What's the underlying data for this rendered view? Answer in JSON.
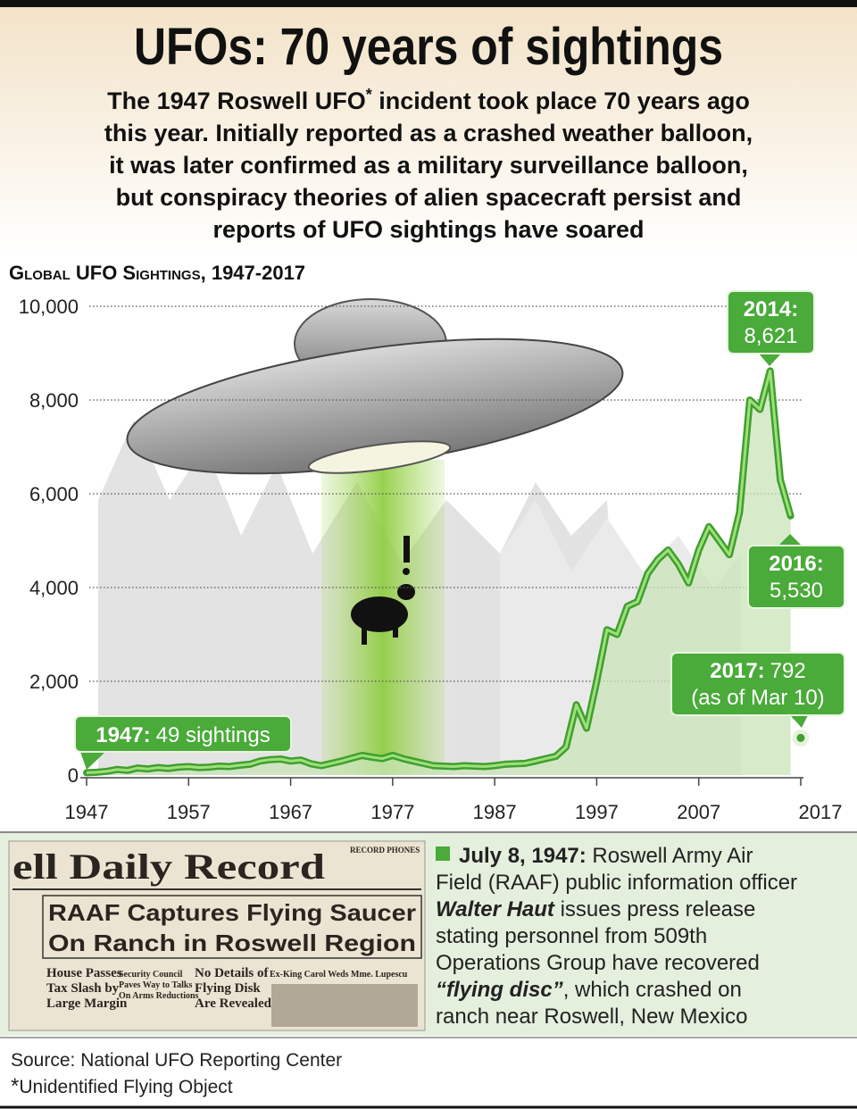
{
  "title": "UFOs: 70 years of sightings",
  "subtitle_lines": [
    [
      "The 1947 Roswell UFO",
      "*",
      " incident took place 70 years ago"
    ],
    "this year. Initially reported as a crashed weather balloon,",
    "it was later confirmed as a military surveillance balloon,",
    "but conspiracy theories of alien spacecraft persist and",
    "reports of UFO sightings have soared"
  ],
  "chart_data": {
    "type": "line",
    "title": "Global UFO Sightings, 1947-2017",
    "color": "#3f9f2f",
    "x": [
      1947,
      1948,
      1949,
      1950,
      1951,
      1952,
      1953,
      1954,
      1955,
      1956,
      1957,
      1958,
      1959,
      1960,
      1961,
      1962,
      1963,
      1964,
      1965,
      1966,
      1967,
      1968,
      1969,
      1970,
      1971,
      1972,
      1973,
      1974,
      1975,
      1976,
      1977,
      1978,
      1979,
      1980,
      1981,
      1982,
      1983,
      1984,
      1985,
      1986,
      1987,
      1988,
      1989,
      1990,
      1991,
      1992,
      1993,
      1994,
      1995,
      1996,
      1997,
      1998,
      1999,
      2000,
      2001,
      2002,
      2003,
      2004,
      2005,
      2006,
      2007,
      2008,
      2009,
      2010,
      2011,
      2012,
      2013,
      2014,
      2015,
      2016
    ],
    "values": [
      49,
      60,
      80,
      120,
      100,
      150,
      130,
      160,
      140,
      170,
      180,
      160,
      170,
      190,
      180,
      210,
      230,
      300,
      330,
      340,
      300,
      320,
      240,
      200,
      250,
      300,
      360,
      420,
      380,
      350,
      420,
      350,
      300,
      250,
      200,
      190,
      180,
      200,
      190,
      180,
      200,
      230,
      240,
      250,
      300,
      350,
      400,
      600,
      1500,
      1000,
      2000,
      3100,
      3000,
      3600,
      3700,
      4300,
      4600,
      4800,
      4500,
      4100,
      4800,
      5300,
      5000,
      4700,
      5600,
      8000,
      7800,
      8621,
      6300,
      5530
    ],
    "extra_points": [
      {
        "x": 2017,
        "value": 792
      }
    ],
    "xlim": [
      1947,
      2017
    ],
    "xticks": [
      1947,
      1957,
      1967,
      1977,
      1987,
      1997,
      2007,
      2017
    ],
    "ylim": [
      0,
      10000
    ],
    "yticks": [
      0,
      {
        "value": 2000,
        "label": "2,000"
      },
      {
        "value": 4000,
        "label": "4,000"
      },
      {
        "value": 6000,
        "label": "6,000"
      },
      {
        "value": 8000,
        "label": "8,000"
      },
      {
        "value": 10000,
        "label": "10,000"
      }
    ],
    "grid": true,
    "annotations": [
      {
        "label": "2014:",
        "text": "8,621"
      },
      {
        "label": "2016:",
        "text": "5,530"
      },
      {
        "label": "2017:",
        "text": "792",
        "text2": "(as of Mar 10)"
      },
      {
        "label": "1947:",
        "text": "49 sightings"
      }
    ]
  },
  "newspaper": {
    "masthead": "ell Daily Record",
    "phones": "RECORD PHONES",
    "headline": [
      "RAAF Captures Flying Saucer",
      "On Ranch in Roswell Region"
    ],
    "stories": [
      [
        "House Passes",
        "Tax Slash by",
        "Large Margin"
      ],
      [
        "Security Council",
        "Paves Way to Talks",
        "On Arms Reductions"
      ],
      [
        "No Details of",
        "Flying Disk",
        "Are Revealed"
      ],
      [
        "Ex-King Carol Weds Mme. Lupescu"
      ]
    ]
  },
  "note": [
    [
      {
        "text": "July 8, 1947:",
        "style": "bold"
      },
      {
        "text": " Roswell Army Air"
      }
    ],
    [
      {
        "text": "Field (RAAF) public information officer"
      }
    ],
    [
      {
        "text": "Walter Haut",
        "style": "bolditalic"
      },
      {
        "text": " issues press release"
      }
    ],
    [
      {
        "text": "stating personnel from 509th"
      }
    ],
    [
      {
        "text": "Operations Group have recovered"
      }
    ],
    [
      {
        "text": "“flying disc”",
        "style": "bolditalic"
      },
      {
        "text": ", which crashed on"
      }
    ],
    [
      {
        "text": "ranch near Roswell, New Mexico"
      }
    ]
  ],
  "source": "Source: National UFO Reporting Center",
  "footnote": [
    "*",
    "Unidentified Flying Object"
  ]
}
